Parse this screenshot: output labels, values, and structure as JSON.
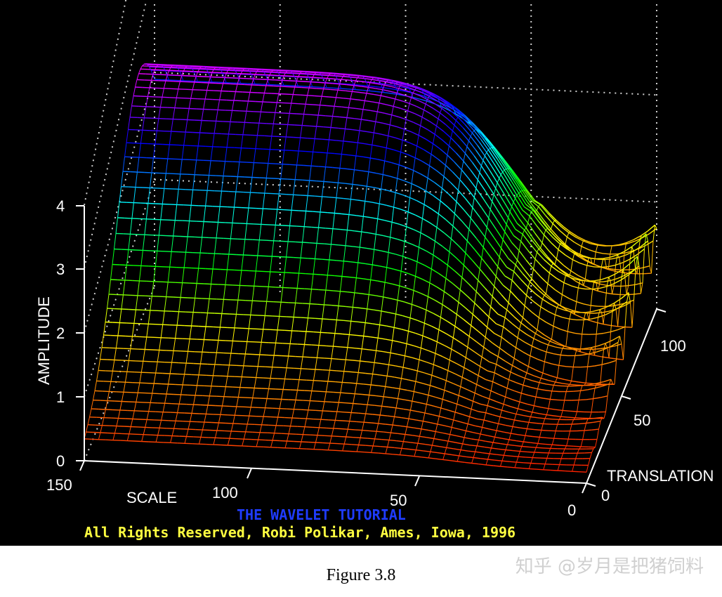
{
  "chart_data": {
    "type": "surface",
    "title": "",
    "zlabel": "AMPLITUDE",
    "xlabel": "SCALE",
    "ylabel": "TRANSLATION",
    "zlim": [
      0,
      4
    ],
    "z_ticks": [
      "0",
      "1",
      "2",
      "3",
      "4"
    ],
    "scale_ticks": [
      "150",
      "100",
      "50",
      "0"
    ],
    "translation_ticks": [
      "0",
      "50",
      "100"
    ],
    "grid": true,
    "colormap": [
      "#ff0000",
      "#ff8000",
      "#ffff00",
      "#00ff00",
      "#00ffff",
      "#0000ff",
      "#ff00ff"
    ]
  },
  "credits": {
    "title": "THE WAVELET TUTORIAL",
    "line": "All Rights Reserved, Robi Polikar, Ames, Iowa, 1996",
    "title_color": "#1f3cff",
    "line_color": "#ffff40"
  },
  "caption": "Figure 3.8",
  "watermark": "知乎 @岁月是把猪饲料"
}
